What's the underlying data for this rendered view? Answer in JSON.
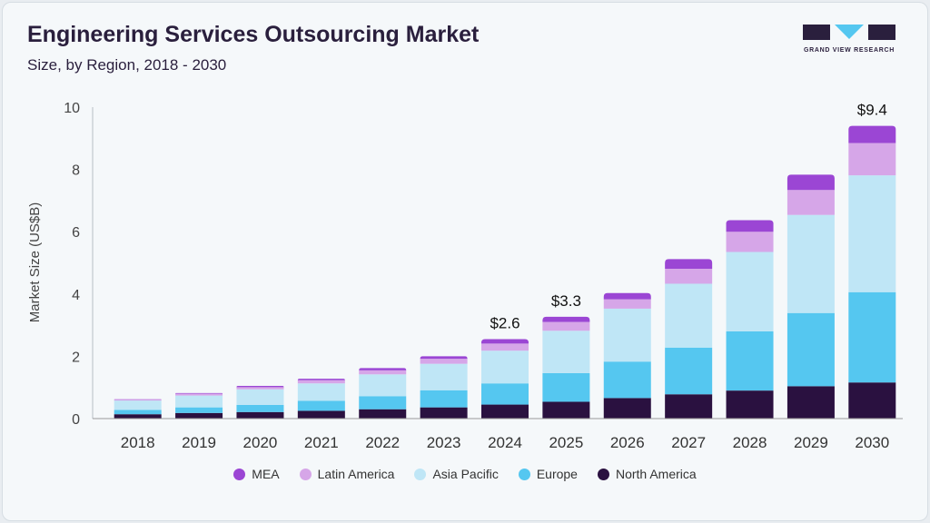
{
  "header": {
    "title": "Engineering Services Outsourcing Market",
    "subtitle": "Size, by Region, 2018 - 2030",
    "logo_text": "GRAND VIEW RESEARCH"
  },
  "colors": {
    "north_america": "#2a1140",
    "europe": "#55c7f0",
    "asia_pacific": "#bfe6f6",
    "latin_america": "#d6a6e8",
    "mea": "#9b46d4",
    "logo": "#2a1f3d",
    "logo_accent": "#55c7f0"
  },
  "chart_data": {
    "type": "bar",
    "stacked": true,
    "title": "Engineering Services Outsourcing Market",
    "xlabel": "",
    "ylabel": "Market Size (US$B)",
    "ylim": [
      0,
      10
    ],
    "yticks": [
      0,
      2,
      4,
      6,
      8,
      10
    ],
    "categories": [
      "2018",
      "2019",
      "2020",
      "2021",
      "2022",
      "2023",
      "2024",
      "2025",
      "2026",
      "2027",
      "2028",
      "2029",
      "2030"
    ],
    "series": [
      {
        "name": "North America",
        "color_key": "north_america",
        "values": [
          0.14,
          0.18,
          0.21,
          0.25,
          0.3,
          0.36,
          0.45,
          0.54,
          0.66,
          0.78,
          0.9,
          1.04,
          1.16
        ]
      },
      {
        "name": "Europe",
        "color_key": "europe",
        "values": [
          0.14,
          0.18,
          0.23,
          0.32,
          0.42,
          0.55,
          0.68,
          0.92,
          1.17,
          1.5,
          1.9,
          2.35,
          2.9
        ]
      },
      {
        "name": "Asia Pacific",
        "color_key": "asia_pacific",
        "values": [
          0.3,
          0.38,
          0.5,
          0.56,
          0.7,
          0.85,
          1.05,
          1.36,
          1.7,
          2.05,
          2.55,
          3.15,
          3.75
        ]
      },
      {
        "name": "Latin America",
        "color_key": "latin_america",
        "values": [
          0.03,
          0.06,
          0.07,
          0.1,
          0.13,
          0.16,
          0.23,
          0.28,
          0.3,
          0.48,
          0.65,
          0.8,
          1.04
        ]
      },
      {
        "name": "MEA",
        "color_key": "mea",
        "values": [
          0.01,
          0.02,
          0.04,
          0.05,
          0.07,
          0.08,
          0.14,
          0.17,
          0.2,
          0.31,
          0.37,
          0.49,
          0.55
        ]
      }
    ],
    "annotations": [
      {
        "category": "2024",
        "label": "$2.6"
      },
      {
        "category": "2025",
        "label": "$3.3"
      },
      {
        "category": "2030",
        "label": "$9.4"
      }
    ],
    "legend": {
      "placement": "bottom",
      "order": [
        "MEA",
        "Latin America",
        "Asia Pacific",
        "Europe",
        "North America"
      ]
    }
  }
}
